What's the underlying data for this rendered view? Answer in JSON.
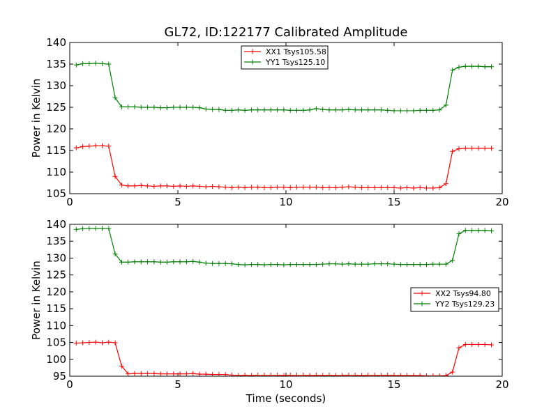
{
  "chart_data": [
    {
      "type": "line",
      "title": "GL72, ID:122177 Calibrated Amplitude",
      "xlabel": "",
      "ylabel": "Power in Kelvin",
      "xlim": [
        0,
        20
      ],
      "ylim": [
        105,
        140
      ],
      "xticks": [
        "0",
        "5",
        "10",
        "15",
        "20"
      ],
      "yticks": [
        "105",
        "110",
        "115",
        "120",
        "125",
        "130",
        "135",
        "140"
      ],
      "grid": false,
      "legend_position": "top-center",
      "x": [
        0.3,
        0.6,
        0.9,
        1.2,
        1.5,
        1.8,
        2.1,
        2.4,
        2.7,
        3.0,
        3.3,
        3.6,
        3.9,
        4.2,
        4.5,
        4.8,
        5.1,
        5.4,
        5.7,
        6.0,
        6.3,
        6.6,
        6.9,
        7.2,
        7.5,
        7.8,
        8.1,
        8.4,
        8.7,
        9.0,
        9.3,
        9.6,
        9.9,
        10.2,
        10.5,
        10.8,
        11.1,
        11.4,
        11.7,
        12.0,
        12.3,
        12.6,
        12.9,
        13.2,
        13.5,
        13.8,
        14.1,
        14.4,
        14.7,
        15.0,
        15.3,
        15.6,
        15.9,
        16.2,
        16.5,
        16.8,
        17.1,
        17.4,
        17.7,
        18.0,
        18.3,
        18.6,
        18.9,
        19.2,
        19.5
      ],
      "series": [
        {
          "name": "XX1 Tsys105.58",
          "color": "#ff0000",
          "values": [
            115.6,
            115.9,
            116.0,
            116.1,
            116.1,
            116.0,
            109.0,
            107.0,
            106.8,
            106.8,
            106.9,
            106.8,
            106.7,
            106.8,
            106.8,
            106.7,
            106.8,
            106.7,
            106.8,
            106.7,
            106.6,
            106.7,
            106.6,
            106.5,
            106.4,
            106.5,
            106.4,
            106.5,
            106.5,
            106.4,
            106.4,
            106.5,
            106.5,
            106.4,
            106.5,
            106.5,
            106.5,
            106.5,
            106.4,
            106.4,
            106.4,
            106.5,
            106.6,
            106.5,
            106.4,
            106.4,
            106.4,
            106.4,
            106.4,
            106.4,
            106.3,
            106.4,
            106.3,
            106.4,
            106.3,
            106.3,
            106.4,
            107.3,
            114.8,
            115.4,
            115.5,
            115.5,
            115.5,
            115.5,
            115.5
          ]
        },
        {
          "name": "YY1 Tsys125.10",
          "color": "#008000",
          "values": [
            134.8,
            135.1,
            135.1,
            135.2,
            135.1,
            135.0,
            127.2,
            125.1,
            125.1,
            125.1,
            125.0,
            125.0,
            125.0,
            124.9,
            124.9,
            125.0,
            125.0,
            125.0,
            125.0,
            124.9,
            124.6,
            124.5,
            124.5,
            124.3,
            124.3,
            124.4,
            124.3,
            124.4,
            124.4,
            124.4,
            124.4,
            124.4,
            124.4,
            124.3,
            124.3,
            124.3,
            124.4,
            124.7,
            124.5,
            124.4,
            124.4,
            124.4,
            124.5,
            124.4,
            124.4,
            124.4,
            124.4,
            124.4,
            124.3,
            124.2,
            124.2,
            124.2,
            124.2,
            124.3,
            124.3,
            124.3,
            124.4,
            125.5,
            133.6,
            134.3,
            134.5,
            134.5,
            134.5,
            134.4,
            134.4
          ]
        }
      ]
    },
    {
      "type": "line",
      "title": "",
      "xlabel": "Time (seconds)",
      "ylabel": "Power in Kelvin",
      "xlim": [
        0,
        20
      ],
      "ylim": [
        95,
        140
      ],
      "xticks": [
        "0",
        "5",
        "10",
        "15",
        "20"
      ],
      "yticks": [
        "95",
        "100",
        "105",
        "110",
        "115",
        "120",
        "125",
        "130",
        "135",
        "140"
      ],
      "grid": false,
      "legend_position": "center-right",
      "x": [
        0.3,
        0.6,
        0.9,
        1.2,
        1.5,
        1.8,
        2.1,
        2.4,
        2.7,
        3.0,
        3.3,
        3.6,
        3.9,
        4.2,
        4.5,
        4.8,
        5.1,
        5.4,
        5.7,
        6.0,
        6.3,
        6.6,
        6.9,
        7.2,
        7.5,
        7.8,
        8.1,
        8.4,
        8.7,
        9.0,
        9.3,
        9.6,
        9.9,
        10.2,
        10.5,
        10.8,
        11.1,
        11.4,
        11.7,
        12.0,
        12.3,
        12.6,
        12.9,
        13.2,
        13.5,
        13.8,
        14.1,
        14.4,
        14.7,
        15.0,
        15.3,
        15.6,
        15.9,
        16.2,
        16.5,
        16.8,
        17.1,
        17.4,
        17.7,
        18.0,
        18.3,
        18.6,
        18.9,
        19.2,
        19.5
      ],
      "series": [
        {
          "name": "XX2 Tsys94.80",
          "color": "#ff0000",
          "values": [
            104.8,
            104.9,
            105.0,
            105.1,
            104.9,
            105.1,
            104.9,
            98.0,
            95.7,
            95.8,
            95.8,
            95.8,
            95.8,
            95.7,
            95.7,
            95.7,
            95.7,
            95.7,
            95.8,
            95.6,
            95.6,
            95.5,
            95.5,
            95.5,
            95.3,
            95.2,
            95.3,
            95.2,
            95.3,
            95.3,
            95.3,
            95.3,
            95.2,
            95.3,
            95.3,
            95.3,
            95.2,
            95.3,
            95.2,
            95.3,
            95.2,
            95.2,
            95.3,
            95.3,
            95.2,
            95.3,
            95.3,
            95.2,
            95.3,
            95.2,
            95.2,
            95.2,
            95.2,
            95.2,
            95.1,
            95.1,
            95.1,
            95.2,
            96.2,
            103.4,
            104.4,
            104.4,
            104.4,
            104.4,
            104.3
          ]
        },
        {
          "name": "YY2 Tsys129.23",
          "color": "#008000",
          "values": [
            138.5,
            138.7,
            138.8,
            138.8,
            138.8,
            138.8,
            131.2,
            128.8,
            128.8,
            128.9,
            128.9,
            128.9,
            128.9,
            128.8,
            128.8,
            128.9,
            128.9,
            128.9,
            129.0,
            128.8,
            128.5,
            128.4,
            128.4,
            128.4,
            128.3,
            128.1,
            128.0,
            128.1,
            128.1,
            128.0,
            128.1,
            128.1,
            128.0,
            128.1,
            128.1,
            128.1,
            128.1,
            128.1,
            128.2,
            128.3,
            128.3,
            128.2,
            128.3,
            128.2,
            128.2,
            128.2,
            128.3,
            128.3,
            128.3,
            128.2,
            128.1,
            128.1,
            128.1,
            128.1,
            128.1,
            128.2,
            128.2,
            128.2,
            129.3,
            137.2,
            138.2,
            138.2,
            138.2,
            138.2,
            138.1
          ]
        }
      ]
    }
  ]
}
